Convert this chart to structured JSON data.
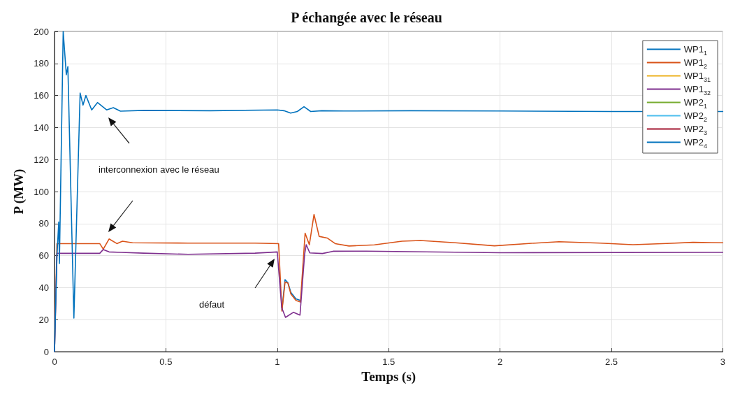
{
  "chart_data": {
    "type": "line",
    "title": "P échangée avec le réseau",
    "xlabel": "Temps (s)",
    "ylabel": "P (MW)",
    "xlim": [
      0,
      3
    ],
    "xticks": [
      0,
      0.5,
      1,
      1.5,
      2,
      2.5,
      3
    ],
    "ylim": [
      0,
      200
    ],
    "yticks": [
      0,
      20,
      40,
      60,
      80,
      100,
      120,
      140,
      160,
      180,
      200
    ],
    "grid": true,
    "legend": "top right",
    "marker": "none",
    "line_style": "solid",
    "annotations": [
      "interconnexion avec le réseau",
      "défaut"
    ],
    "series": [
      {
        "name": "WP1$_{1}$",
        "color": "#0072bd",
        "x": [
          1.021,
          1.035,
          1.048,
          1.061,
          1.084,
          1.104
        ],
        "values": [
          26,
          45,
          43,
          37,
          33,
          32
        ]
      },
      {
        "name": "WP1$_{2}$",
        "color": "#d95319",
        "x": [
          0,
          0.011,
          0.203,
          0.219,
          0.245,
          0.28,
          0.305,
          0.35,
          0.6,
          0.9,
          1.006,
          1.021,
          1.035,
          1.048,
          1.061,
          1.084,
          1.104,
          1.125,
          1.144,
          1.165,
          1.188,
          1.224,
          1.26,
          1.322,
          1.436,
          1.56,
          1.643,
          1.8,
          1.975,
          2.12,
          2.265,
          2.45,
          2.597,
          2.75,
          2.866,
          3
        ],
        "values": [
          0,
          67.5,
          67.5,
          64,
          70.4,
          67.5,
          69,
          68,
          67.8,
          67.8,
          67.5,
          25.3,
          43.5,
          42.8,
          36,
          32,
          31,
          74,
          66.8,
          85.7,
          72,
          71,
          67.5,
          66,
          66.7,
          69,
          69.4,
          68,
          66.1,
          67.5,
          68.7,
          67.8,
          66.8,
          67.6,
          68.3,
          68
        ]
      },
      {
        "name": "WP1$_{31}$",
        "color": "#edb120"
      },
      {
        "name": "WP1$_{32}$",
        "color": "#7e2f8e",
        "x": [
          0,
          0.011,
          0.203,
          0.219,
          0.245,
          0.3,
          0.4,
          0.6,
          0.9,
          1.0,
          1.02,
          1.037,
          1.073,
          1.102,
          1.123,
          1.13,
          1.146,
          1.203,
          1.25,
          1.4,
          2,
          3
        ],
        "values": [
          0,
          61.4,
          61.4,
          63.8,
          62.3,
          62,
          61.5,
          60.8,
          61.5,
          62.3,
          27.5,
          21.4,
          24.6,
          22.8,
          61,
          66.8,
          61.7,
          61.3,
          62.7,
          62.8,
          61.8,
          62
        ]
      },
      {
        "name": "WP2$_{1}$",
        "color": "#77ac30"
      },
      {
        "name": "WP2$_{2}$",
        "color": "#4dbeee"
      },
      {
        "name": "WP2$_{3}$",
        "color": "#a2142f"
      },
      {
        "name": "WP2$_{4}$",
        "color": "#0072bd",
        "x": [
          0,
          0.011,
          0.019,
          0.022,
          0.039,
          0.053,
          0.06,
          0.087,
          0.115,
          0.128,
          0.141,
          0.167,
          0.193,
          0.234,
          0.264,
          0.296,
          0.4,
          0.7,
          1.0,
          1.03,
          1.06,
          1.09,
          1.12,
          1.15,
          1.2,
          1.3,
          1.6,
          2,
          2.5,
          3
        ],
        "values": [
          0,
          59.5,
          81,
          55,
          200,
          173,
          178,
          21,
          161.5,
          154,
          160,
          151,
          155.6,
          151,
          152.4,
          150.2,
          150.7,
          150.5,
          151,
          150.5,
          149,
          150,
          153,
          150,
          150.5,
          150.3,
          150.5,
          150.3,
          150,
          150
        ]
      }
    ]
  }
}
